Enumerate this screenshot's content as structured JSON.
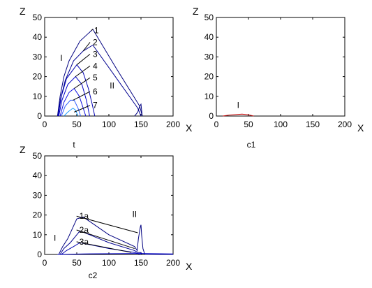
{
  "chart_data": [
    {
      "type": "line",
      "caption": "t",
      "xlabel": "X",
      "ylabel": "Z",
      "xlim": [
        0,
        200
      ],
      "ylim": [
        0,
        50
      ],
      "xticks": [
        0,
        50,
        100,
        150,
        200
      ],
      "yticks": [
        0,
        10,
        20,
        30,
        40,
        50
      ],
      "regions": [
        {
          "text": "I",
          "x": 26,
          "y": 28
        },
        {
          "text": "II",
          "x": 105,
          "y": 14
        }
      ],
      "curve_labels": [
        {
          "text": "1",
          "x": 77,
          "y": 42,
          "line_to": [
            75,
            44
          ]
        },
        {
          "text": "2",
          "x": 75,
          "y": 36,
          "line_to": [
            60,
            33
          ]
        },
        {
          "text": "3",
          "x": 75,
          "y": 30,
          "line_to": [
            50,
            26
          ]
        },
        {
          "text": "4",
          "x": 75,
          "y": 24,
          "line_to": [
            48,
            20
          ]
        },
        {
          "text": "5",
          "x": 75,
          "y": 18,
          "line_to": [
            46,
            14
          ]
        },
        {
          "text": "6",
          "x": 75,
          "y": 11,
          "line_to": [
            44,
            8
          ]
        },
        {
          "text": "7",
          "x": 75,
          "y": 4,
          "line_to": [
            46,
            2
          ]
        }
      ],
      "series": [
        {
          "values": [
            [
              20,
              0
            ],
            [
              24,
              10
            ],
            [
              30,
              20
            ],
            [
              38,
              28
            ],
            [
              55,
              38
            ],
            [
              75,
              44
            ],
            [
              110,
              25
            ],
            [
              148,
              5
            ],
            [
              152,
              0
            ]
          ]
        },
        {
          "values": [
            [
              20,
              0
            ],
            [
              25,
              9
            ],
            [
              32,
              18
            ],
            [
              45,
              28
            ],
            [
              60,
              33
            ],
            [
              75,
              36
            ],
            [
              110,
              20
            ],
            [
              145,
              4
            ],
            [
              150,
              0
            ]
          ]
        },
        {
          "values": [
            [
              21,
              0
            ],
            [
              26,
              10
            ],
            [
              34,
              19
            ],
            [
              50,
              26
            ],
            [
              60,
              22
            ],
            [
              68,
              14
            ],
            [
              74,
              6
            ],
            [
              78,
              0
            ]
          ]
        },
        {
          "values": [
            [
              22,
              0
            ],
            [
              27,
              8
            ],
            [
              36,
              16
            ],
            [
              48,
              20
            ],
            [
              58,
              16
            ],
            [
              65,
              8
            ],
            [
              70,
              0
            ]
          ]
        },
        {
          "values": [
            [
              24,
              0
            ],
            [
              30,
              7
            ],
            [
              38,
              12
            ],
            [
              46,
              14
            ],
            [
              54,
              10
            ],
            [
              60,
              4
            ],
            [
              64,
              0
            ]
          ]
        },
        {
          "values": [
            [
              26,
              0
            ],
            [
              32,
              5
            ],
            [
              40,
              8
            ],
            [
              46,
              8
            ],
            [
              52,
              4
            ],
            [
              56,
              0
            ]
          ]
        },
        {
          "values": [
            [
              30,
              0
            ],
            [
              36,
              2
            ],
            [
              44,
              4
            ],
            [
              48,
              3
            ],
            [
              52,
              0
            ]
          ]
        },
        {
          "values": [
            [
              140,
              0
            ],
            [
              145,
              2
            ],
            [
              148,
              5
            ],
            [
              150,
              6
            ],
            [
              152,
              0
            ]
          ]
        }
      ]
    },
    {
      "type": "line",
      "caption": "c1",
      "xlabel": "X",
      "ylabel": "Z",
      "xlim": [
        0,
        200
      ],
      "ylim": [
        0,
        50
      ],
      "xticks": [
        0,
        50,
        100,
        150,
        200
      ],
      "yticks": [
        0,
        10,
        20,
        30,
        40,
        50
      ],
      "regions": [
        {
          "text": "I",
          "x": 34,
          "y": 4
        }
      ],
      "series": [
        {
          "values": [
            [
              10,
              0
            ],
            [
              20,
              0.5
            ],
            [
              40,
              1
            ],
            [
              50,
              0.6
            ],
            [
              58,
              0
            ]
          ]
        }
      ]
    },
    {
      "type": "line",
      "caption": "c2",
      "xlabel": "X",
      "ylabel": "Z",
      "xlim": [
        0,
        200
      ],
      "ylim": [
        0,
        50
      ],
      "xticks": [
        0,
        50,
        100,
        150,
        200
      ],
      "yticks": [
        0,
        10,
        20,
        30,
        40,
        50
      ],
      "regions": [
        {
          "text": "I",
          "x": 16,
          "y": 7
        },
        {
          "text": "II",
          "x": 140,
          "y": 19
        }
      ],
      "curve_labels": [
        {
          "text": "1a",
          "x": 54,
          "y": 18,
          "line_to": [
            145,
            11
          ]
        },
        {
          "text": "2a",
          "x": 54,
          "y": 11,
          "line_to": [
            140,
            3
          ]
        },
        {
          "text": "3a",
          "x": 54,
          "y": 5,
          "line_to": [
            135,
            1
          ]
        }
      ],
      "series": [
        {
          "values": [
            [
              22,
              0
            ],
            [
              28,
              4
            ],
            [
              36,
              8
            ],
            [
              50,
              18
            ],
            [
              60,
              19
            ],
            [
              100,
              10
            ],
            [
              140,
              4
            ],
            [
              144,
              2
            ],
            [
              146,
              8
            ],
            [
              149,
              14
            ],
            [
              150,
              15
            ],
            [
              151,
              10
            ],
            [
              153,
              3
            ],
            [
              156,
              0
            ],
            [
              200,
              0
            ]
          ]
        },
        {
          "values": [
            [
              24,
              0
            ],
            [
              30,
              3
            ],
            [
              40,
              6
            ],
            [
              55,
              12
            ],
            [
              100,
              6
            ],
            [
              140,
              2
            ],
            [
              145,
              1
            ],
            [
              150,
              1
            ],
            [
              152,
              0
            ]
          ]
        },
        {
          "values": [
            [
              26,
              0
            ],
            [
              34,
              2
            ],
            [
              45,
              4
            ],
            [
              55,
              6
            ],
            [
              100,
              3
            ],
            [
              140,
              1
            ],
            [
              150,
              0
            ]
          ]
        },
        {
          "values": [
            [
              20,
              0
            ],
            [
              60,
              0.3
            ],
            [
              150,
              0.5
            ],
            [
              200,
              0.3
            ]
          ]
        }
      ]
    }
  ]
}
